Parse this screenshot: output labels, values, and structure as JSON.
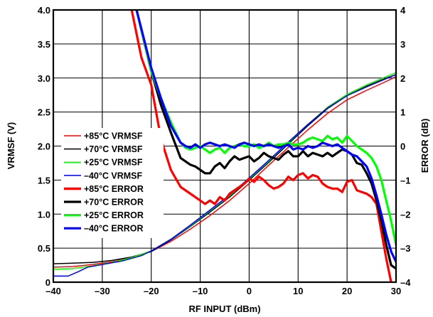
{
  "chart_data": {
    "type": "line",
    "title": "",
    "xlabel": "RF INPUT (dBm)",
    "ylabel_left": "VRMSF (V)",
    "ylabel_right": "ERROR (dB)",
    "xlim": [
      -40,
      30
    ],
    "ylim_left": [
      0,
      4.0
    ],
    "ylim_right": [
      -4,
      4
    ],
    "grid": true,
    "legend_position": "left-center",
    "x_ticks": [
      "–40",
      "–30",
      "–20",
      "–10",
      "0",
      "10",
      "20",
      "30"
    ],
    "y_left_ticks": [
      "0",
      "0.5",
      "1.0",
      "1.5",
      "2.0",
      "2.5",
      "3.0",
      "3.5",
      "4.0"
    ],
    "y_right_ticks": [
      "–4",
      "–3",
      "–2",
      "–1",
      "0",
      "1",
      "2",
      "3",
      "4"
    ],
    "series": [
      {
        "name": "+85°C VRMSF",
        "axis": "left",
        "color": "#ff0000",
        "width": "thin",
        "x": [
          -40,
          -36,
          -32,
          -28,
          -24,
          -20,
          -16,
          -12,
          -8,
          -4,
          0,
          4,
          8,
          12,
          16,
          20,
          24,
          28,
          30
        ],
        "y": [
          0.22,
          0.23,
          0.26,
          0.3,
          0.36,
          0.45,
          0.6,
          0.78,
          0.98,
          1.2,
          1.45,
          1.72,
          1.98,
          2.24,
          2.48,
          2.68,
          2.82,
          2.95,
          3.02
        ]
      },
      {
        "name": "+70°C VRMSF",
        "axis": "left",
        "color": "#000000",
        "width": "thin",
        "x": [
          -40,
          -36,
          -32,
          -28,
          -24,
          -20,
          -16,
          -12,
          -8,
          -4,
          0,
          4,
          8,
          12,
          16,
          20,
          24,
          28,
          30
        ],
        "y": [
          0.27,
          0.28,
          0.29,
          0.32,
          0.37,
          0.45,
          0.62,
          0.82,
          1.03,
          1.25,
          1.5,
          1.76,
          2.03,
          2.3,
          2.55,
          2.74,
          2.88,
          3.0,
          3.05
        ]
      },
      {
        "name": "+25°C VRMSF",
        "axis": "left",
        "color": "#00ff00",
        "width": "thin",
        "x": [
          -40,
          -36,
          -32,
          -28,
          -24,
          -20,
          -16,
          -12,
          -8,
          -4,
          0,
          4,
          8,
          12,
          16,
          20,
          24,
          28,
          30
        ],
        "y": [
          0.19,
          0.2,
          0.24,
          0.29,
          0.36,
          0.46,
          0.63,
          0.83,
          1.05,
          1.27,
          1.52,
          1.78,
          2.05,
          2.32,
          2.57,
          2.76,
          2.9,
          3.02,
          3.08
        ]
      },
      {
        "name": "–40°C VRMSF",
        "axis": "left",
        "color": "#0000ff",
        "width": "thin",
        "x": [
          -40,
          -37,
          -35,
          -33,
          -30,
          -26,
          -22,
          -20,
          -16,
          -12,
          -8,
          -4,
          0,
          4,
          8,
          12,
          16,
          20,
          24,
          28,
          30
        ],
        "y": [
          0.09,
          0.09,
          0.15,
          0.22,
          0.26,
          0.31,
          0.39,
          0.46,
          0.63,
          0.84,
          1.06,
          1.28,
          1.53,
          1.79,
          2.06,
          2.32,
          2.56,
          2.74,
          2.87,
          2.99,
          3.05
        ]
      },
      {
        "name": "+85°C ERROR",
        "axis": "right",
        "color": "#ff0000",
        "width": "thick",
        "x": [
          -24,
          -22,
          -20,
          -18,
          -16,
          -14,
          -12,
          -10,
          -9,
          -8,
          -7,
          -6,
          -5,
          -4,
          -3,
          -2,
          -1,
          0,
          1,
          2,
          3,
          4,
          5,
          6,
          7,
          8,
          9,
          10,
          11,
          12,
          13,
          14,
          15,
          16,
          17,
          18,
          19,
          20,
          21,
          22,
          23,
          24,
          25,
          26,
          27,
          28,
          29
        ],
        "y": [
          4.0,
          2.6,
          1.8,
          0.2,
          -0.7,
          -1.2,
          -1.4,
          -1.6,
          -1.7,
          -1.6,
          -1.7,
          -1.5,
          -1.6,
          -1.4,
          -1.3,
          -1.2,
          -1.1,
          -0.95,
          -1.05,
          -0.9,
          -1.0,
          -1.15,
          -1.25,
          -1.2,
          -1.1,
          -0.9,
          -1.0,
          -0.85,
          -0.8,
          -0.95,
          -0.85,
          -0.9,
          -1.1,
          -1.2,
          -1.25,
          -1.25,
          -1.35,
          -1.05,
          -1.0,
          -1.3,
          -1.35,
          -1.4,
          -1.5,
          -1.7,
          -2.5,
          -3.3,
          -4.0
        ]
      },
      {
        "name": "+70°C ERROR",
        "axis": "right",
        "color": "#000000",
        "width": "thick",
        "x": [
          -23,
          -20,
          -18,
          -16,
          -14,
          -12,
          -11,
          -10,
          -9,
          -8,
          -7,
          -6,
          -5,
          -4,
          -3,
          -2,
          -1,
          0,
          1,
          2,
          3,
          4,
          5,
          6,
          7,
          8,
          9,
          10,
          11,
          12,
          13,
          14,
          15,
          16,
          17,
          18,
          19,
          20,
          21,
          22,
          23,
          24,
          25,
          26,
          27,
          28,
          29,
          30
        ],
        "y": [
          4.0,
          2.2,
          1.2,
          0.4,
          -0.35,
          -0.55,
          -0.6,
          -0.7,
          -0.8,
          -0.8,
          -0.6,
          -0.5,
          -0.65,
          -0.45,
          -0.3,
          -0.4,
          -0.35,
          -0.3,
          -0.45,
          -0.35,
          -0.2,
          -0.3,
          -0.35,
          -0.4,
          -0.25,
          -0.15,
          -0.3,
          -0.3,
          -0.15,
          -0.3,
          -0.2,
          -0.25,
          -0.3,
          -0.2,
          -0.3,
          -0.2,
          -0.1,
          -0.15,
          -0.25,
          -0.5,
          -0.55,
          -0.8,
          -1.1,
          -1.6,
          -2.2,
          -2.9,
          -3.5,
          -3.6
        ]
      },
      {
        "name": "+25°C ERROR",
        "axis": "right",
        "color": "#00ff00",
        "width": "thick",
        "x": [
          -23,
          -20,
          -18,
          -16,
          -14,
          -13,
          -12,
          -11,
          -10,
          -9,
          -8,
          -7,
          -6,
          -5,
          -4,
          -3,
          -2,
          -1,
          0,
          1,
          2,
          3,
          4,
          5,
          6,
          7,
          8,
          9,
          10,
          11,
          12,
          13,
          14,
          15,
          16,
          17,
          18,
          19,
          20,
          21,
          22,
          23,
          24,
          25,
          26,
          27,
          28,
          29,
          30
        ],
        "y": [
          4.0,
          2.2,
          1.4,
          0.7,
          0.1,
          -0.05,
          -0.1,
          -0.05,
          0.0,
          -0.1,
          -0.2,
          -0.1,
          -0.05,
          -0.2,
          -0.05,
          0.0,
          0.05,
          0.0,
          0.0,
          0.05,
          -0.05,
          0.0,
          0.1,
          0.0,
          0.05,
          0.05,
          0.1,
          0.05,
          0.05,
          0.1,
          0.2,
          0.25,
          0.2,
          0.15,
          0.3,
          0.2,
          0.25,
          0.1,
          0.3,
          0.15,
          0.0,
          -0.1,
          -0.2,
          -0.35,
          -0.6,
          -1.0,
          -1.6,
          -2.2,
          -2.9
        ]
      },
      {
        "name": "–40°C ERROR",
        "axis": "right",
        "color": "#0000ff",
        "width": "thick",
        "x": [
          -23,
          -20,
          -18,
          -16,
          -14,
          -13,
          -12,
          -11,
          -10,
          -9,
          -8,
          -7,
          -6,
          -5,
          -4,
          -3,
          -2,
          -1,
          0,
          1,
          2,
          3,
          4,
          5,
          6,
          7,
          8,
          9,
          10,
          11,
          12,
          13,
          14,
          15,
          16,
          17,
          18,
          19,
          20,
          21,
          22,
          23,
          24,
          25,
          26,
          27,
          28,
          29,
          30
        ],
        "y": [
          4.0,
          2.3,
          1.4,
          0.6,
          0.1,
          0.0,
          -0.05,
          0.05,
          -0.05,
          0.05,
          0.1,
          0.05,
          0.0,
          0.05,
          0.0,
          -0.05,
          0.05,
          0.1,
          0.05,
          0.0,
          0.05,
          0.0,
          0.05,
          0.0,
          -0.05,
          0.0,
          0.05,
          -0.1,
          -0.05,
          -0.1,
          0.0,
          -0.05,
          0.0,
          0.1,
          0.05,
          0.0,
          0.05,
          -0.05,
          -0.15,
          -0.25,
          -0.3,
          -0.45,
          -0.6,
          -0.95,
          -1.45,
          -2.0,
          -2.6,
          -3.1,
          -3.4
        ]
      }
    ]
  }
}
